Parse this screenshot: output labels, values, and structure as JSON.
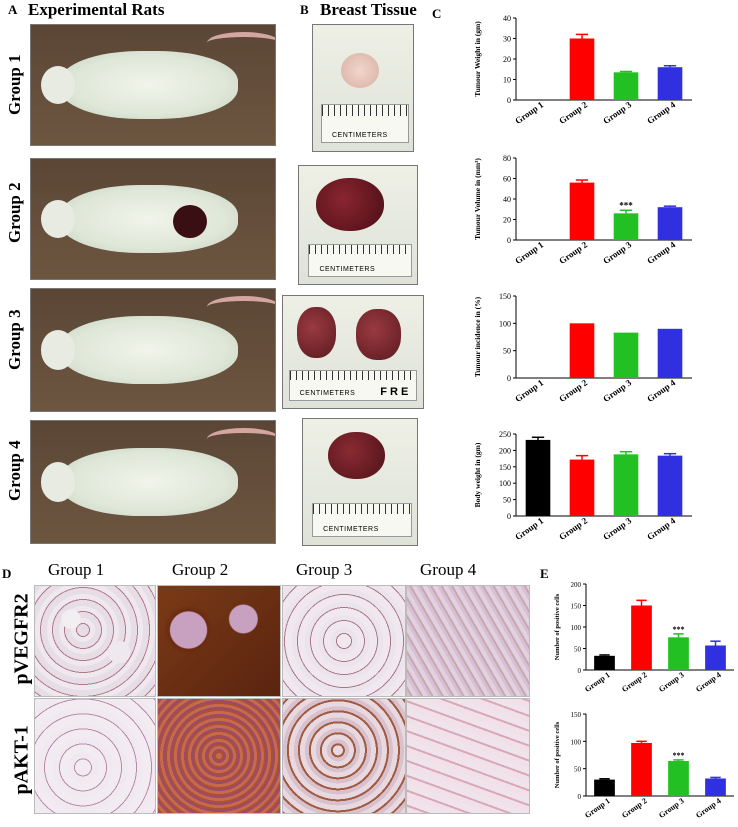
{
  "panels": {
    "A": {
      "letter": "A",
      "title": "Experimental Rats"
    },
    "B": {
      "letter": "B",
      "title": "Breast Tissue"
    },
    "C": {
      "letter": "C"
    },
    "D": {
      "letter": "D"
    },
    "E": {
      "letter": "E"
    }
  },
  "groups": [
    "Group 1",
    "Group 2",
    "Group 3",
    "Group 4"
  ],
  "ruler_text": "CENTIMETERS",
  "ruler_extra": "F R E",
  "histology": {
    "columns": [
      "Group 1",
      "Group 2",
      "Group 3",
      "Group 4"
    ],
    "rows": [
      "pVEGFR2",
      "pAKT-1"
    ]
  },
  "colors": {
    "group1": "#000000",
    "group2": "#ff0000",
    "group3": "#22c022",
    "group4": "#3030e0"
  },
  "chart_data": [
    {
      "type": "bar",
      "id": "tumour-weight",
      "categories": [
        "Group 1",
        "Group 2",
        "Group 3",
        "Group 4"
      ],
      "values": [
        0,
        30,
        13.5,
        16
      ],
      "errors": [
        0,
        2,
        0.4,
        0.7
      ],
      "annotations": [
        "",
        "",
        "",
        ""
      ],
      "ylabel": "Tumour Weight in (gm)",
      "ylim": [
        0,
        40
      ],
      "yticks": [
        0,
        10,
        20,
        30,
        40
      ]
    },
    {
      "type": "bar",
      "id": "tumour-volume",
      "categories": [
        "Group 1",
        "Group 2",
        "Group 3",
        "Group 4"
      ],
      "values": [
        0,
        56,
        26,
        32
      ],
      "errors": [
        0,
        2.5,
        3,
        1
      ],
      "annotations": [
        "",
        "",
        "***",
        ""
      ],
      "ylabel": "Tumour Volume in (mm³)",
      "ylim": [
        0,
        80
      ],
      "yticks": [
        0,
        20,
        40,
        60,
        80
      ]
    },
    {
      "type": "bar",
      "id": "tumour-incidence",
      "categories": [
        "Group 1",
        "Group 2",
        "Group 3",
        "Group 4"
      ],
      "values": [
        0,
        100,
        83,
        90
      ],
      "errors": [
        0,
        0,
        0,
        0
      ],
      "annotations": [
        "",
        "",
        "",
        ""
      ],
      "ylabel": "Tumour incidence in (%)",
      "ylim": [
        0,
        150
      ],
      "yticks": [
        0,
        50,
        100,
        150
      ]
    },
    {
      "type": "bar",
      "id": "body-weight",
      "categories": [
        "Group 1",
        "Group 2",
        "Group 3",
        "Group 4"
      ],
      "values": [
        232,
        172,
        188,
        184
      ],
      "errors": [
        8,
        12,
        8,
        6
      ],
      "annotations": [
        "",
        "",
        "",
        ""
      ],
      "ylabel": "Body weight in (gm)",
      "ylim": [
        0,
        250
      ],
      "yticks": [
        0,
        50,
        100,
        150,
        200,
        250
      ]
    },
    {
      "type": "bar",
      "id": "pvegfr2-cells",
      "categories": [
        "Group 1",
        "Group 2",
        "Group 3",
        "Group 4"
      ],
      "values": [
        33,
        150,
        76,
        57
      ],
      "errors": [
        2,
        12,
        8,
        10
      ],
      "annotations": [
        "",
        "",
        "***",
        ""
      ],
      "ylabel": "Number of positive cells",
      "ylim": [
        0,
        200
      ],
      "yticks": [
        0,
        50,
        100,
        150,
        200
      ]
    },
    {
      "type": "bar",
      "id": "pakt1-cells",
      "categories": [
        "Group 1",
        "Group 2",
        "Group 3",
        "Group 4"
      ],
      "values": [
        30,
        97,
        64,
        32
      ],
      "errors": [
        1.5,
        3,
        2,
        2
      ],
      "annotations": [
        "",
        "",
        "***",
        ""
      ],
      "ylabel": "Number of positive cells",
      "ylim": [
        0,
        150
      ],
      "yticks": [
        0,
        50,
        100,
        150
      ]
    }
  ]
}
